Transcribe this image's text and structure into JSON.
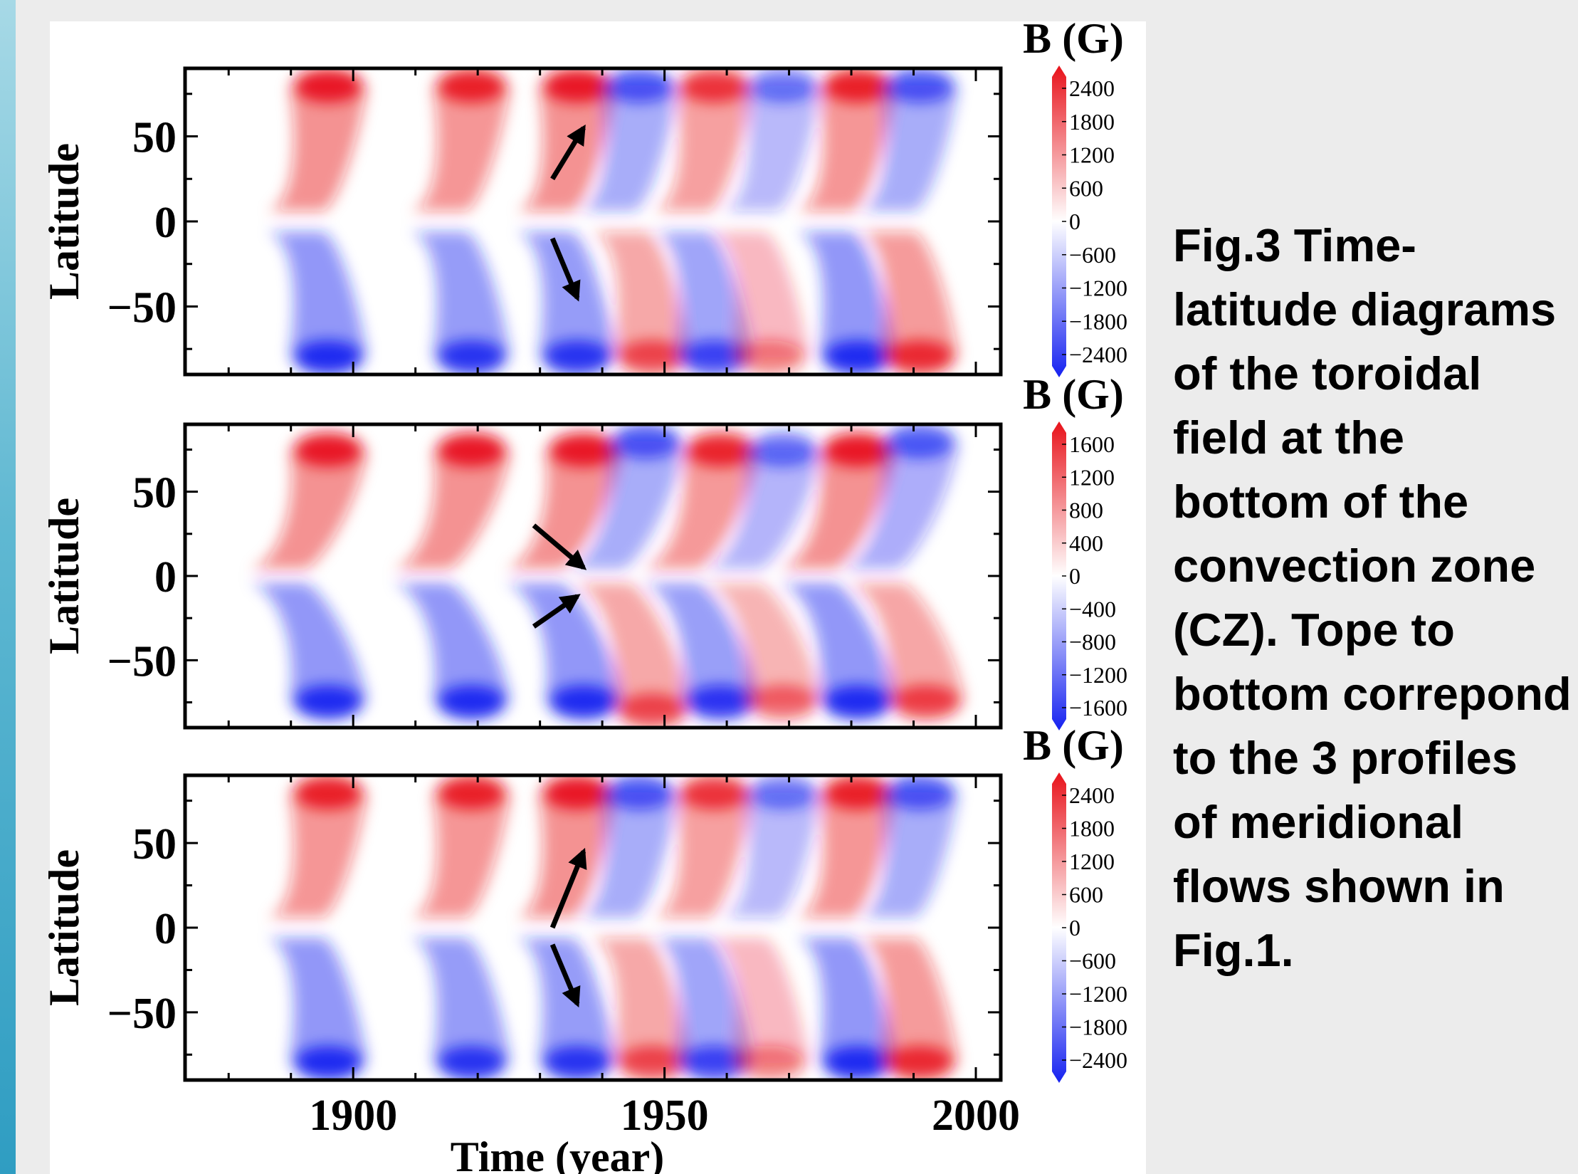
{
  "caption": "Fig.3 Time-latitude diagrams of the toroidal field at the bottom of the convection zone (CZ). Tope to bottom correpond to the 3 profiles of meridional flows shown in Fig.1.",
  "colors": {
    "positive": "#e8121a",
    "negative": "#1521f0",
    "zero": "#ffffff",
    "accent": "#2f9dc2"
  },
  "chart_data": [
    {
      "type": "heatmap",
      "xlim": [
        1873,
        2004
      ],
      "ylim": [
        -90,
        90
      ],
      "ylabel": "Latitude",
      "yticks": [
        "50",
        "0",
        "−50"
      ],
      "colorbar": {
        "title": "B (G)",
        "labels": [
          "2400",
          "1800",
          "1200",
          "600",
          "0",
          "−600",
          "−1200",
          "−1800",
          "−2400"
        ]
      },
      "polar_peaks": [
        {
          "year": 1896,
          "lat": 80,
          "B": 2400
        },
        {
          "year": 1896,
          "lat": -80,
          "B": -2400
        },
        {
          "year": 1919,
          "lat": 80,
          "B": 2200
        },
        {
          "year": 1919,
          "lat": -80,
          "B": -2200
        },
        {
          "year": 1936,
          "lat": 80,
          "B": 2400
        },
        {
          "year": 1936,
          "lat": -80,
          "B": -2200
        },
        {
          "year": 1946,
          "lat": 80,
          "B": -1500
        },
        {
          "year": 1948,
          "lat": -80,
          "B": 1500
        },
        {
          "year": 1958,
          "lat": 80,
          "B": 1800
        },
        {
          "year": 1958,
          "lat": -80,
          "B": -1800
        },
        {
          "year": 1969,
          "lat": 80,
          "B": -900
        },
        {
          "year": 1967,
          "lat": -80,
          "B": 600
        },
        {
          "year": 1981,
          "lat": 80,
          "B": 2200
        },
        {
          "year": 1981,
          "lat": -80,
          "B": -2400
        },
        {
          "year": 1991,
          "lat": 80,
          "B": -1500
        },
        {
          "year": 1991,
          "lat": -80,
          "B": 2000
        }
      ],
      "arrows": [
        {
          "from": [
            1932,
            25
          ],
          "to": [
            1937,
            55
          ]
        },
        {
          "from": [
            1932,
            -10
          ],
          "to": [
            1936,
            -45
          ]
        }
      ]
    },
    {
      "type": "heatmap",
      "xlim": [
        1873,
        2004
      ],
      "ylim": [
        -90,
        90
      ],
      "ylabel": "Latitude",
      "yticks": [
        "50",
        "0",
        "−50"
      ],
      "colorbar": {
        "title": "B (G)",
        "labels": [
          "1600",
          "1200",
          "800",
          "400",
          "0",
          "−400",
          "−800",
          "−1200",
          "−1600"
        ]
      },
      "polar_peaks": [
        {
          "year": 1896,
          "lat": 75,
          "B": 1600
        },
        {
          "year": 1896,
          "lat": -75,
          "B": -1600
        },
        {
          "year": 1919,
          "lat": 75,
          "B": 1600
        },
        {
          "year": 1919,
          "lat": -75,
          "B": -1600
        },
        {
          "year": 1937,
          "lat": 75,
          "B": 1600
        },
        {
          "year": 1937,
          "lat": -75,
          "B": -1600
        },
        {
          "year": 1947,
          "lat": 80,
          "B": -1000
        },
        {
          "year": 1948,
          "lat": -80,
          "B": 1000
        },
        {
          "year": 1959,
          "lat": 75,
          "B": 1400
        },
        {
          "year": 1959,
          "lat": -75,
          "B": -1400
        },
        {
          "year": 1969,
          "lat": 75,
          "B": -700
        },
        {
          "year": 1969,
          "lat": -75,
          "B": 700
        },
        {
          "year": 1981,
          "lat": 75,
          "B": 1600
        },
        {
          "year": 1981,
          "lat": -75,
          "B": -1600
        },
        {
          "year": 1991,
          "lat": 80,
          "B": -900
        },
        {
          "year": 1992,
          "lat": -75,
          "B": 1100
        }
      ],
      "arrows": [
        {
          "from": [
            1929,
            30
          ],
          "to": [
            1937,
            5
          ]
        },
        {
          "from": [
            1929,
            -30
          ],
          "to": [
            1936,
            -12
          ]
        }
      ]
    },
    {
      "type": "heatmap",
      "xlim": [
        1873,
        2004
      ],
      "ylim": [
        -90,
        90
      ],
      "ylabel": "Latitude",
      "xlabel": "Time (year)",
      "xticks": [
        "1900",
        "1950",
        "2000"
      ],
      "yticks": [
        "50",
        "0",
        "−50"
      ],
      "colorbar": {
        "title": "B (G)",
        "labels": [
          "2400",
          "1800",
          "1200",
          "600",
          "0",
          "−600",
          "−1200",
          "−1800",
          "−2400"
        ]
      },
      "polar_peaks": [
        {
          "year": 1896,
          "lat": 80,
          "B": 2200
        },
        {
          "year": 1896,
          "lat": -80,
          "B": -2400
        },
        {
          "year": 1919,
          "lat": 80,
          "B": 2200
        },
        {
          "year": 1919,
          "lat": -80,
          "B": -2200
        },
        {
          "year": 1936,
          "lat": 80,
          "B": 2400
        },
        {
          "year": 1936,
          "lat": -80,
          "B": -2200
        },
        {
          "year": 1946,
          "lat": 80,
          "B": -1500
        },
        {
          "year": 1948,
          "lat": -80,
          "B": 1500
        },
        {
          "year": 1958,
          "lat": 80,
          "B": 1800
        },
        {
          "year": 1958,
          "lat": -80,
          "B": -1800
        },
        {
          "year": 1969,
          "lat": 80,
          "B": -900
        },
        {
          "year": 1967,
          "lat": -80,
          "B": 600
        },
        {
          "year": 1981,
          "lat": 80,
          "B": 2200
        },
        {
          "year": 1981,
          "lat": -80,
          "B": -2400
        },
        {
          "year": 1991,
          "lat": 80,
          "B": -1500
        },
        {
          "year": 1991,
          "lat": -80,
          "B": 2000
        }
      ],
      "arrows": [
        {
          "from": [
            1932,
            0
          ],
          "to": [
            1937,
            45
          ]
        },
        {
          "from": [
            1932,
            -10
          ],
          "to": [
            1936,
            -45
          ]
        }
      ]
    }
  ]
}
